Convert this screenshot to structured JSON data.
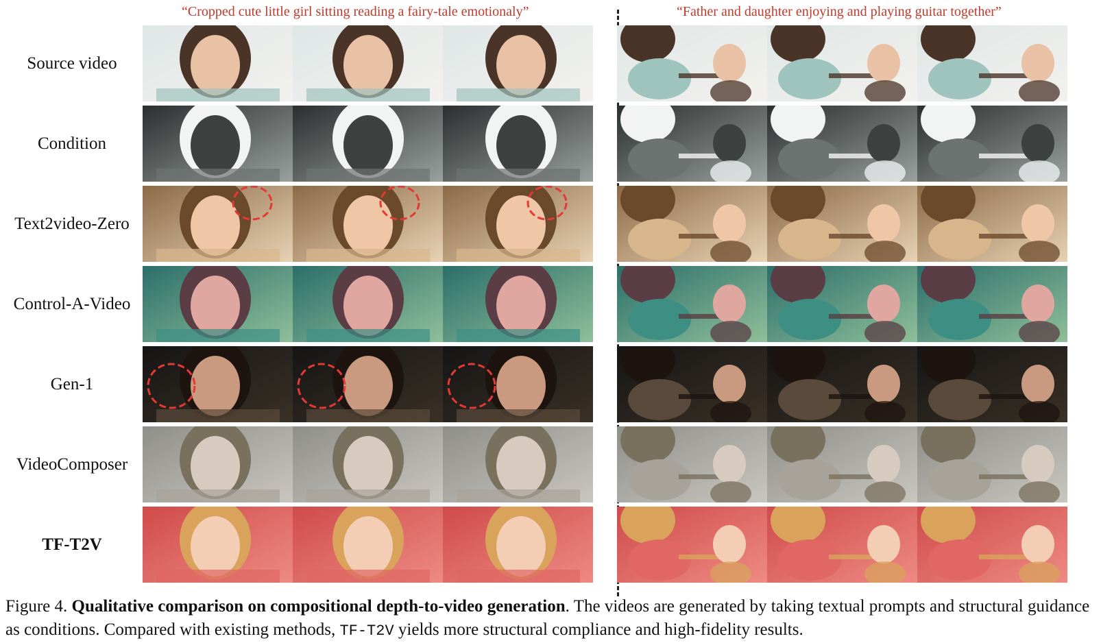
{
  "prompts": {
    "left": "“Cropped cute little girl sitting reading a fairy-tale emotionaly”",
    "right": "“Father and daughter enjoying and playing guitar together”"
  },
  "rows": [
    {
      "label": "Source video",
      "bold": false,
      "style": "source"
    },
    {
      "label": "Condition",
      "bold": false,
      "style": "depth"
    },
    {
      "label": "Text2video-Zero",
      "bold": false,
      "style": "warm"
    },
    {
      "label": "Control-A-Video",
      "bold": false,
      "style": "teal"
    },
    {
      "label": "Gen-1",
      "bold": false,
      "style": "dark"
    },
    {
      "label": "VideoComposer",
      "bold": false,
      "style": "gray"
    },
    {
      "label": "TF-T2V",
      "bold": true,
      "style": "red"
    }
  ],
  "frames_per_prompt": 3,
  "colors": {
    "prompt_text": "#c0392b",
    "annotation_circle": "#e53935"
  },
  "caption": {
    "fig_label": "Figure 4. ",
    "bold_title": "Qualitative comparison on compositional depth-to-video generation",
    "text_a": ". The videos are generated by taking textual prompts and structural guidance as conditions. Compared with existing methods, ",
    "mono": "TF-T2V",
    "text_b": " yields more structural compliance and high-fidelity results."
  }
}
